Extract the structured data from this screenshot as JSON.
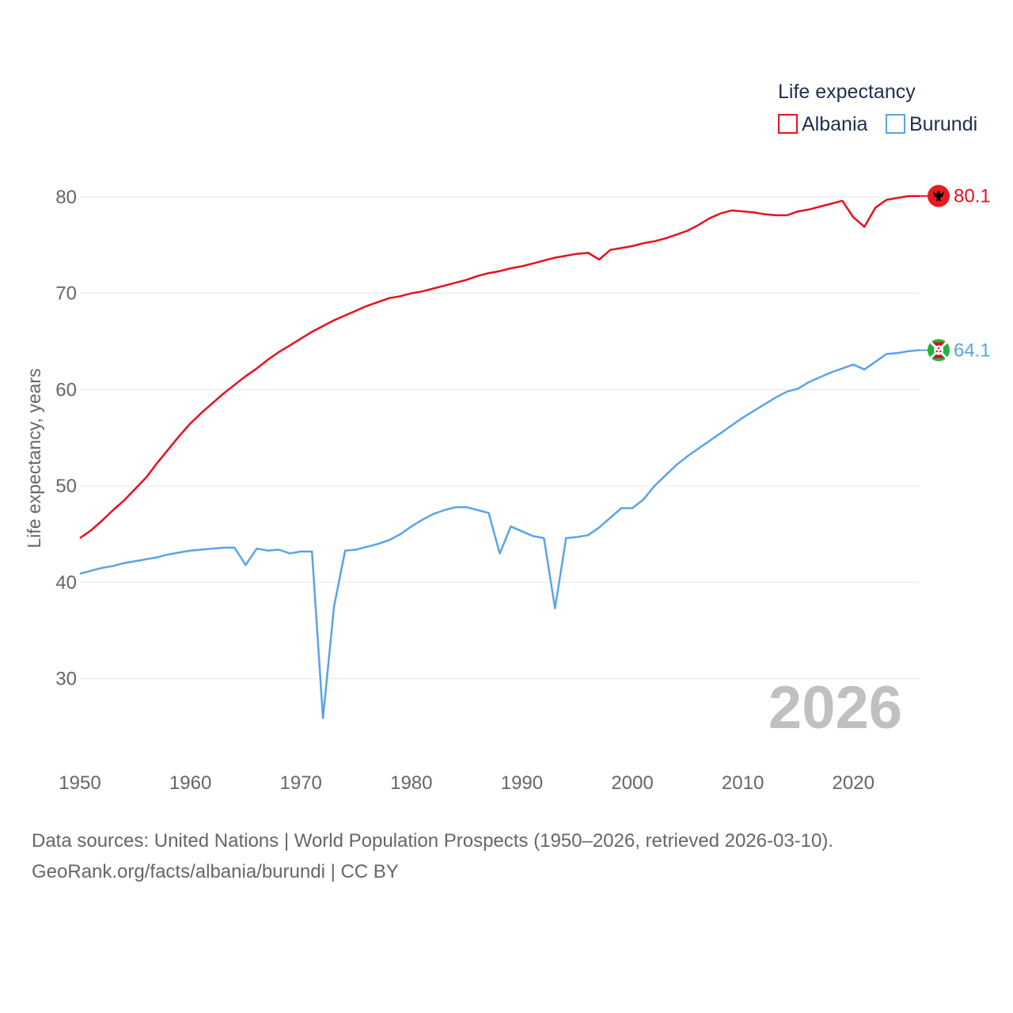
{
  "chart_data": {
    "type": "line",
    "ylabel": "Life expectancy, years",
    "xlim": [
      1950,
      2026
    ],
    "ylim": [
      22,
      85
    ],
    "yticks": [
      30,
      40,
      50,
      60,
      70,
      80
    ],
    "xticks": [
      1950,
      1960,
      1970,
      1980,
      1990,
      2000,
      2010,
      2020
    ],
    "grid": true,
    "legend": {
      "title": "Life expectancy",
      "position": "top-right",
      "entries": [
        "Albania",
        "Burundi"
      ]
    },
    "watermark_year": "2026",
    "series": [
      {
        "name": "Albania",
        "color": "#e8101f",
        "end_label": "80.1",
        "flag": "albania-flag",
        "x": [
          1950,
          1951,
          1952,
          1953,
          1954,
          1955,
          1956,
          1957,
          1958,
          1959,
          1960,
          1961,
          1962,
          1963,
          1964,
          1965,
          1966,
          1967,
          1968,
          1969,
          1970,
          1971,
          1972,
          1973,
          1974,
          1975,
          1976,
          1977,
          1978,
          1979,
          1980,
          1981,
          1982,
          1983,
          1984,
          1985,
          1986,
          1987,
          1988,
          1989,
          1990,
          1991,
          1992,
          1993,
          1994,
          1995,
          1996,
          1997,
          1998,
          1999,
          2000,
          2001,
          2002,
          2003,
          2004,
          2005,
          2006,
          2007,
          2008,
          2009,
          2010,
          2011,
          2012,
          2013,
          2014,
          2015,
          2016,
          2017,
          2018,
          2019,
          2020,
          2021,
          2022,
          2023,
          2024,
          2025,
          2026
        ],
        "values": [
          44.6,
          45.4,
          46.4,
          47.5,
          48.5,
          49.7,
          50.9,
          52.4,
          53.8,
          55.2,
          56.5,
          57.6,
          58.6,
          59.6,
          60.5,
          61.4,
          62.2,
          63.1,
          63.9,
          64.6,
          65.3,
          66.0,
          66.6,
          67.2,
          67.7,
          68.2,
          68.7,
          69.1,
          69.5,
          69.7,
          70.0,
          70.2,
          70.5,
          70.8,
          71.1,
          71.4,
          71.8,
          72.1,
          72.3,
          72.6,
          72.8,
          73.1,
          73.4,
          73.7,
          73.9,
          74.1,
          74.2,
          73.5,
          74.5,
          74.7,
          74.9,
          75.2,
          75.4,
          75.7,
          76.1,
          76.5,
          77.1,
          77.8,
          78.3,
          78.6,
          78.5,
          78.4,
          78.2,
          78.1,
          78.1,
          78.5,
          78.7,
          79.0,
          79.3,
          79.6,
          77.9,
          76.9,
          78.9,
          79.7,
          79.9,
          80.1,
          80.1
        ]
      },
      {
        "name": "Burundi",
        "color": "#5ba3e6",
        "end_label": "64.1",
        "flag": "burundi-flag",
        "x": [
          1950,
          1951,
          1952,
          1953,
          1954,
          1955,
          1956,
          1957,
          1958,
          1959,
          1960,
          1961,
          1962,
          1963,
          1964,
          1965,
          1966,
          1967,
          1968,
          1969,
          1970,
          1971,
          1972,
          1973,
          1974,
          1975,
          1976,
          1977,
          1978,
          1979,
          1980,
          1981,
          1982,
          1983,
          1984,
          1985,
          1986,
          1987,
          1988,
          1989,
          1990,
          1991,
          1992,
          1993,
          1994,
          1995,
          1996,
          1997,
          1998,
          1999,
          2000,
          2001,
          2002,
          2003,
          2004,
          2005,
          2006,
          2007,
          2008,
          2009,
          2010,
          2011,
          2012,
          2013,
          2014,
          2015,
          2016,
          2017,
          2018,
          2019,
          2020,
          2021,
          2022,
          2023,
          2024,
          2025,
          2026
        ],
        "values": [
          40.9,
          41.2,
          41.5,
          41.7,
          42.0,
          42.2,
          42.4,
          42.6,
          42.9,
          43.1,
          43.3,
          43.4,
          43.5,
          43.6,
          43.6,
          41.8,
          43.5,
          43.3,
          43.4,
          43.0,
          43.2,
          43.2,
          25.9,
          37.5,
          43.3,
          43.4,
          43.7,
          44.0,
          44.4,
          45.0,
          45.8,
          46.5,
          47.1,
          47.5,
          47.8,
          47.8,
          47.5,
          47.2,
          43.0,
          45.8,
          45.3,
          44.8,
          44.6,
          37.3,
          44.6,
          44.7,
          44.9,
          45.7,
          46.7,
          47.7,
          47.7,
          48.6,
          50.0,
          51.1,
          52.2,
          53.1,
          53.9,
          54.7,
          55.5,
          56.3,
          57.1,
          57.8,
          58.5,
          59.2,
          59.8,
          60.1,
          60.8,
          61.3,
          61.8,
          62.2,
          62.6,
          62.1,
          62.9,
          63.7,
          63.8,
          64.0,
          64.1
        ]
      }
    ]
  },
  "source": {
    "line1": "Data sources: United Nations | World Population Prospects (1950–2026, retrieved 2026-03-10).",
    "line2": "GeoRank.org/facts/albania/burundi | CC BY"
  }
}
